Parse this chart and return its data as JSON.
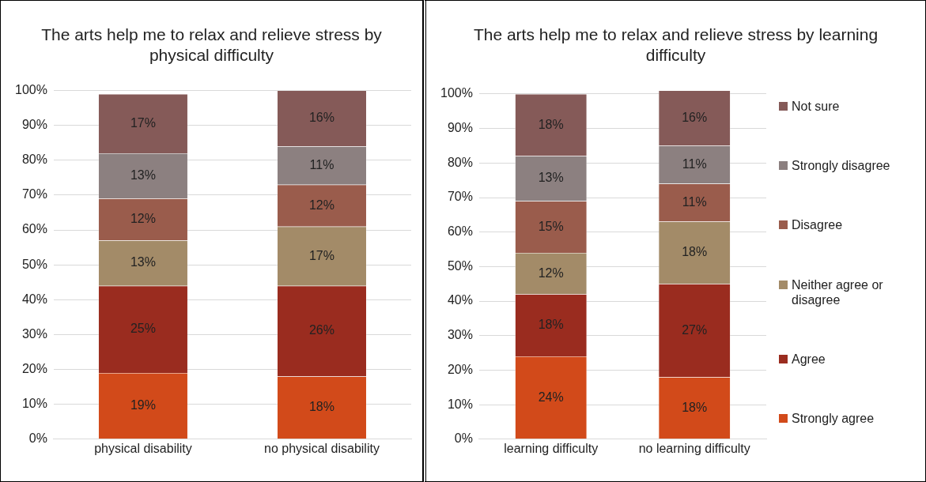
{
  "chart_data": [
    {
      "type": "bar",
      "stacked": true,
      "title": "The arts help me to relax and relieve stress by physical difficulty",
      "categories": [
        "physical disability",
        "no physical disability"
      ],
      "ylim": [
        0,
        100
      ],
      "yticks": [
        {
          "value": 0,
          "label": "0%"
        },
        {
          "value": 10,
          "label": "10%"
        },
        {
          "value": 20,
          "label": "20%"
        },
        {
          "value": 30,
          "label": "30%"
        },
        {
          "value": 40,
          "label": "40%"
        },
        {
          "value": 50,
          "label": "50%"
        },
        {
          "value": 60,
          "label": "60%"
        },
        {
          "value": 70,
          "label": "70%"
        },
        {
          "value": 80,
          "label": "80%"
        },
        {
          "value": 90,
          "label": "90%"
        },
        {
          "value": 100,
          "label": "100%"
        }
      ],
      "grid": "y",
      "legend": false,
      "series": [
        {
          "color": "#d24a1a",
          "values": [
            19,
            18
          ],
          "value_labels": [
            "19%",
            "18%"
          ]
        },
        {
          "color": "#9a2c1f",
          "values": [
            25,
            26
          ],
          "value_labels": [
            "25%",
            "26%"
          ]
        },
        {
          "color": "#a38b68",
          "values": [
            13,
            17
          ],
          "value_labels": [
            "13%",
            "17%"
          ]
        },
        {
          "color": "#9a5c4c",
          "values": [
            12,
            12
          ],
          "value_labels": [
            "12%",
            "12%"
          ]
        },
        {
          "color": "#8c8080",
          "values": [
            13,
            11
          ],
          "value_labels": [
            "13%",
            "11%"
          ]
        },
        {
          "color": "#855a58",
          "values": [
            17,
            16
          ],
          "value_labels": [
            "17%",
            "16%"
          ]
        }
      ]
    },
    {
      "type": "bar",
      "stacked": true,
      "title": "The arts help me to relax and relieve stress by learning difficulty",
      "categories": [
        "learning difficulty",
        "no learning difficulty"
      ],
      "ylim": [
        0,
        101
      ],
      "yticks": [
        {
          "value": 0,
          "label": "0%"
        },
        {
          "value": 10,
          "label": "10%"
        },
        {
          "value": 20,
          "label": "20%"
        },
        {
          "value": 30,
          "label": "30%"
        },
        {
          "value": 40,
          "label": "40%"
        },
        {
          "value": 50,
          "label": "50%"
        },
        {
          "value": 60,
          "label": "60%"
        },
        {
          "value": 70,
          "label": "70%"
        },
        {
          "value": 80,
          "label": "80%"
        },
        {
          "value": 90,
          "label": "90%"
        },
        {
          "value": 100,
          "label": "100%"
        }
      ],
      "grid": "y",
      "legend": "right",
      "series": [
        {
          "name": "Strongly agree",
          "color": "#d24a1a",
          "values": [
            24,
            18
          ],
          "value_labels": [
            "24%",
            "18%"
          ]
        },
        {
          "name": "Agree",
          "color": "#9a2c1f",
          "values": [
            18,
            27
          ],
          "value_labels": [
            "18%",
            "27%"
          ]
        },
        {
          "name": "Neither agree or disagree",
          "color": "#a38b68",
          "values": [
            12,
            18
          ],
          "value_labels": [
            "12%",
            "18%"
          ]
        },
        {
          "name": "Disagree",
          "color": "#9a5c4c",
          "values": [
            15,
            11
          ],
          "value_labels": [
            "15%",
            "11%"
          ]
        },
        {
          "name": "Strongly disagree",
          "color": "#8c8080",
          "values": [
            13,
            11
          ],
          "value_labels": [
            "13%",
            "11%"
          ]
        },
        {
          "name": "Not sure",
          "color": "#855a58",
          "values": [
            18,
            16
          ],
          "value_labels": [
            "18%",
            "16%"
          ]
        }
      ]
    }
  ]
}
